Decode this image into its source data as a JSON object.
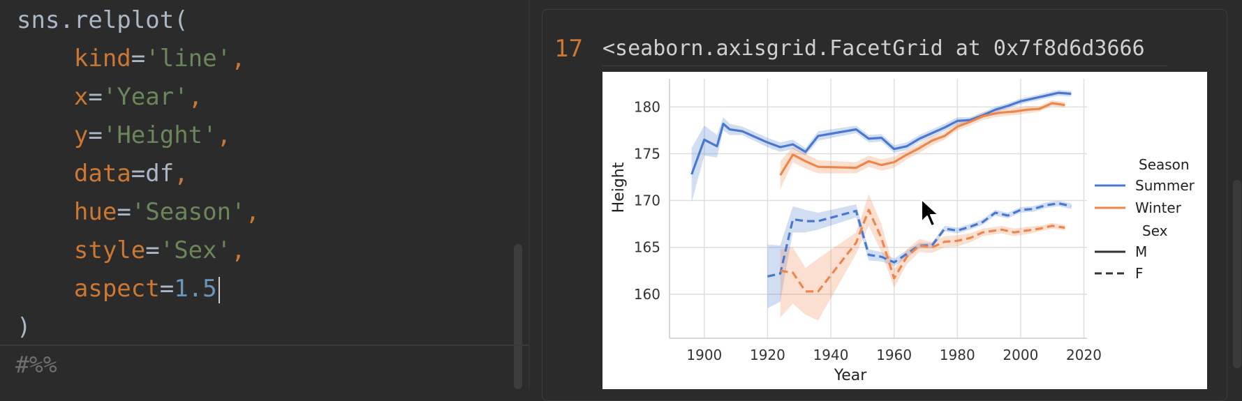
{
  "editor": {
    "lines": [
      {
        "parts": [
          {
            "t": "sns.relplot(",
            "c": "plain"
          }
        ]
      },
      {
        "parts": [
          {
            "t": "    ",
            "c": "plain"
          },
          {
            "t": "kind",
            "c": "kw"
          },
          {
            "t": "=",
            "c": "plain"
          },
          {
            "t": "'line'",
            "c": "str"
          },
          {
            "t": ",",
            "c": "kw"
          }
        ]
      },
      {
        "parts": [
          {
            "t": "    ",
            "c": "plain"
          },
          {
            "t": "x",
            "c": "kw"
          },
          {
            "t": "=",
            "c": "plain"
          },
          {
            "t": "'Year'",
            "c": "str"
          },
          {
            "t": ",",
            "c": "kw"
          }
        ]
      },
      {
        "parts": [
          {
            "t": "    ",
            "c": "plain"
          },
          {
            "t": "y",
            "c": "kw"
          },
          {
            "t": "=",
            "c": "plain"
          },
          {
            "t": "'Height'",
            "c": "str"
          },
          {
            "t": ",",
            "c": "kw"
          }
        ]
      },
      {
        "parts": [
          {
            "t": "    ",
            "c": "plain"
          },
          {
            "t": "data",
            "c": "kw"
          },
          {
            "t": "=",
            "c": "plain"
          },
          {
            "t": "df",
            "c": "plain"
          },
          {
            "t": ",",
            "c": "kw"
          }
        ]
      },
      {
        "parts": [
          {
            "t": "    ",
            "c": "plain"
          },
          {
            "t": "hue",
            "c": "kw"
          },
          {
            "t": "=",
            "c": "plain"
          },
          {
            "t": "'Season'",
            "c": "str"
          },
          {
            "t": ",",
            "c": "kw"
          }
        ]
      },
      {
        "parts": [
          {
            "t": "    ",
            "c": "plain"
          },
          {
            "t": "style",
            "c": "kw"
          },
          {
            "t": "=",
            "c": "plain"
          },
          {
            "t": "'Sex'",
            "c": "str"
          },
          {
            "t": ",",
            "c": "kw"
          }
        ]
      },
      {
        "parts": [
          {
            "t": "    ",
            "c": "plain"
          },
          {
            "t": "aspect",
            "c": "kw"
          },
          {
            "t": "=",
            "c": "plain"
          },
          {
            "t": "1.5",
            "c": "num"
          }
        ]
      },
      {
        "parts": [
          {
            "t": ")",
            "c": "plain"
          }
        ]
      }
    ],
    "cell_marker": "#%%"
  },
  "output": {
    "exec_count": "17",
    "text": "<seaborn.axisgrid.FacetGrid at 0x7f8d6d3666"
  },
  "chart_data": {
    "type": "line",
    "xlabel": "Year",
    "ylabel": "Height",
    "xlim": [
      1889,
      2021
    ],
    "ylim": [
      155.3,
      183
    ],
    "xticks": [
      1900,
      1920,
      1940,
      1960,
      1980,
      2000,
      2020
    ],
    "yticks": [
      160,
      165,
      170,
      175,
      180
    ],
    "grid": true,
    "legend": {
      "placement": "right",
      "title_hue": "Season",
      "title_style": "Sex",
      "entries": [
        {
          "label": "Summer",
          "kind": "hue"
        },
        {
          "label": "Winter",
          "kind": "hue"
        },
        {
          "label": "M",
          "kind": "style"
        },
        {
          "label": "F",
          "kind": "style"
        }
      ]
    },
    "colors": {
      "Summer": "#4878d0",
      "Winter": "#ee854a"
    },
    "series": [
      {
        "season": "Summer",
        "sex": "M",
        "x": [
          1896,
          1900,
          1904,
          1906,
          1908,
          1912,
          1920,
          1924,
          1928,
          1932,
          1936,
          1948,
          1952,
          1956,
          1960,
          1964,
          1968,
          1972,
          1976,
          1980,
          1984,
          1988,
          1992,
          1996,
          2000,
          2004,
          2008,
          2012,
          2016
        ],
        "y": [
          172.8,
          176.5,
          175.8,
          178.2,
          177.6,
          177.4,
          176.2,
          175.7,
          176.0,
          175.2,
          176.9,
          177.6,
          176.6,
          176.7,
          175.5,
          175.8,
          176.6,
          177.2,
          177.8,
          178.5,
          178.6,
          179.1,
          179.7,
          180.1,
          180.6,
          180.9,
          181.2,
          181.5,
          181.4
        ],
        "ci_lo": [
          169.8,
          174.8,
          174.6,
          177.5,
          177.0,
          177.0,
          175.7,
          175.2,
          175.5,
          174.8,
          176.4,
          177.2,
          176.2,
          176.3,
          175.1,
          175.4,
          176.2,
          176.8,
          177.4,
          178.1,
          178.3,
          178.8,
          179.4,
          179.8,
          180.3,
          180.6,
          180.9,
          181.2,
          181.1
        ],
        "ci_hi": [
          175.6,
          178.0,
          177.0,
          178.9,
          178.2,
          177.9,
          176.7,
          176.2,
          176.5,
          175.6,
          177.4,
          178.0,
          177.0,
          177.1,
          175.9,
          176.2,
          177.0,
          177.6,
          178.2,
          178.9,
          178.9,
          179.4,
          180.0,
          180.4,
          180.9,
          181.2,
          181.5,
          181.8,
          181.7
        ]
      },
      {
        "season": "Winter",
        "sex": "M",
        "x": [
          1924,
          1928,
          1932,
          1936,
          1948,
          1952,
          1956,
          1960,
          1964,
          1968,
          1972,
          1976,
          1980,
          1984,
          1988,
          1992,
          1994,
          1998,
          2002,
          2006,
          2010,
          2014
        ],
        "y": [
          172.7,
          174.9,
          174.2,
          173.6,
          173.5,
          174.2,
          173.8,
          174.1,
          174.9,
          175.6,
          176.4,
          176.9,
          177.9,
          178.4,
          179.0,
          179.3,
          179.4,
          179.5,
          179.7,
          179.8,
          180.4,
          180.2
        ],
        "ci_lo": [
          171.2,
          174.1,
          173.4,
          172.9,
          172.9,
          173.6,
          173.2,
          173.5,
          174.4,
          175.1,
          175.9,
          176.5,
          177.5,
          178.0,
          178.6,
          178.9,
          179.0,
          179.1,
          179.3,
          179.5,
          180.1,
          179.9
        ],
        "ci_hi": [
          174.2,
          175.7,
          175.0,
          174.3,
          174.1,
          174.8,
          174.4,
          174.7,
          175.4,
          176.1,
          176.9,
          177.3,
          178.3,
          178.8,
          179.4,
          179.7,
          179.8,
          179.9,
          180.1,
          180.1,
          180.7,
          180.5
        ]
      },
      {
        "season": "Summer",
        "sex": "F",
        "x": [
          1920,
          1924,
          1928,
          1932,
          1936,
          1948,
          1952,
          1956,
          1960,
          1964,
          1968,
          1972,
          1976,
          1980,
          1984,
          1988,
          1992,
          1996,
          2000,
          2004,
          2008,
          2012,
          2016
        ],
        "y": [
          161.9,
          162.2,
          168.0,
          167.8,
          167.8,
          168.9,
          164.2,
          164.0,
          163.4,
          164.3,
          165.2,
          165.2,
          167.0,
          166.8,
          167.2,
          167.7,
          168.7,
          168.4,
          169.0,
          169.1,
          169.5,
          169.7,
          169.4
        ],
        "ci_lo": [
          158.5,
          159.2,
          166.6,
          166.6,
          166.9,
          168.2,
          163.6,
          163.5,
          163.0,
          163.9,
          164.9,
          164.9,
          166.7,
          166.5,
          166.9,
          167.4,
          168.4,
          168.1,
          168.7,
          168.8,
          169.2,
          169.4,
          169.1
        ],
        "ci_hi": [
          165.3,
          165.2,
          169.4,
          169.0,
          168.7,
          169.6,
          164.8,
          164.5,
          163.8,
          164.7,
          165.5,
          165.5,
          167.3,
          167.1,
          167.5,
          168.0,
          169.0,
          168.7,
          169.3,
          169.4,
          169.8,
          170.0,
          169.7
        ]
      },
      {
        "season": "Winter",
        "sex": "F",
        "x": [
          1924,
          1928,
          1932,
          1936,
          1948,
          1952,
          1956,
          1960,
          1964,
          1968,
          1972,
          1976,
          1980,
          1984,
          1988,
          1992,
          1994,
          1998,
          2002,
          2006,
          2010,
          2014
        ],
        "y": [
          162.5,
          162.3,
          160.3,
          160.3,
          165.5,
          169.0,
          166.0,
          161.7,
          164.0,
          165.2,
          165.0,
          165.6,
          165.7,
          166.0,
          166.6,
          166.8,
          166.9,
          166.6,
          166.8,
          167.0,
          167.3,
          167.1
        ],
        "ci_lo": [
          157.5,
          159.0,
          157.8,
          157.2,
          164.3,
          167.3,
          164.5,
          160.7,
          163.2,
          164.5,
          164.4,
          165.0,
          165.1,
          165.5,
          166.2,
          166.4,
          166.5,
          166.2,
          166.4,
          166.7,
          167.0,
          166.8
        ],
        "ci_hi": [
          164.8,
          165.0,
          162.8,
          163.8,
          166.6,
          170.7,
          167.5,
          162.7,
          164.8,
          165.9,
          165.6,
          166.2,
          166.3,
          166.5,
          167.0,
          167.2,
          167.3,
          167.0,
          167.2,
          167.3,
          167.6,
          167.4
        ]
      }
    ]
  }
}
